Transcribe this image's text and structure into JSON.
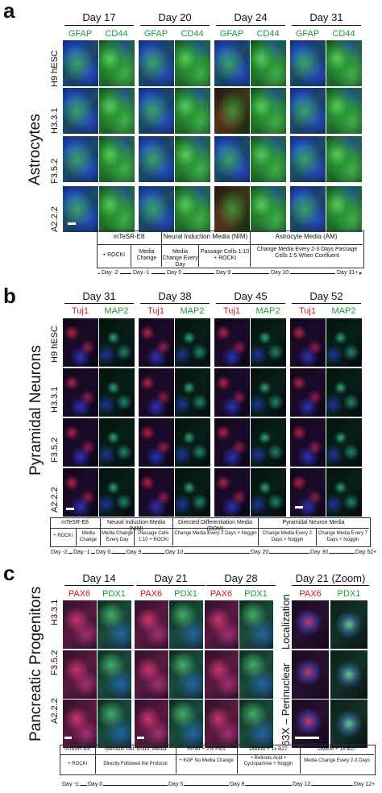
{
  "panel_a": {
    "label": "a",
    "side_label": "Astrocytes",
    "days": [
      "Day 17",
      "Day 20",
      "Day 24",
      "Day 31"
    ],
    "stains": [
      "GFAP",
      "CD44"
    ],
    "rows": [
      "H9 hESC",
      "H3.3.1",
      "F3.5.2",
      "A2.2.2"
    ],
    "media": [
      "mTeSR-E8",
      "Neural Induction Media (NIM)",
      "Astrocyte Media (AM)"
    ],
    "steps": [
      "+ ROCKi",
      "Media Change",
      "Media Change Every Day",
      "Passage Cells 1:10 + ROCKi",
      "Change Media Every 2-3 Days Passage Cells 1:5 When Confluent"
    ],
    "ticks": [
      "Day -2",
      "Day -1",
      "Day 0",
      "Day 9",
      "Day 10",
      "Day 31+"
    ]
  },
  "panel_b": {
    "label": "b",
    "side_label": "Pyramidal Neurons",
    "days": [
      "Day 31",
      "Day 38",
      "Day 45",
      "Day 52"
    ],
    "stains": [
      "Tuj1",
      "MAP2"
    ],
    "rows": [
      "H9 hESC",
      "H3.3.1",
      "F3.5.2",
      "A2.2.2"
    ],
    "media": [
      "mTeSR-E8",
      "Neural Induction Media (NIM)",
      "Directed Differentiation Media (DDM)",
      "Pyramidal Neuron Media"
    ],
    "steps": [
      "+ ROCKi",
      "Media Change",
      "Media Change Every Day",
      "Passage Cells 1:10 + ROCKi",
      "Change Media Every 2 Days + Noggin",
      "Change Media Every 2 Days + Noggin",
      "Change Media Every 7 Days + Noggin"
    ],
    "ticks": [
      "Day -2",
      "Day -1",
      "Day 0",
      "Day 9",
      "Day 10",
      "Day 20",
      "Day 30",
      "Day 52+"
    ]
  },
  "panel_c": {
    "label": "c",
    "side_label": "Pancreatic Progenitors",
    "days": [
      "Day 14",
      "Day 21",
      "Day 28",
      "Day 21 (Zoom)"
    ],
    "stains": [
      "PAX6",
      "PDX1"
    ],
    "rows": [
      "H3.3.1",
      "F3.5.2",
      "A2.2.2"
    ],
    "zoom_labels": [
      "Localization",
      "63X – Perinuclear"
    ],
    "media": [
      "mTeSR-E8",
      "StemDiff Def. Endo. Media",
      "RPMI + 2% FBS",
      "DMEM + 1x B27",
      "DMEM + 1x B27"
    ],
    "steps": [
      "+ ROCKi",
      "Directly Followed the Protocol",
      "+ KGF No Media Change",
      "+ Retinoic Acid + Cyclopamine + Noggin",
      "Media Change Every 2-3 Days"
    ],
    "ticks": [
      "Day -1",
      "Day 0",
      "Day 5",
      "Day 8",
      "Day 12",
      "Day 12+"
    ]
  },
  "colors": {
    "green_stain": "#1a9a3a",
    "red_stain": "#d21a1a",
    "nucleus_blue": "#1e3cc8",
    "background_dark": "#050810"
  }
}
